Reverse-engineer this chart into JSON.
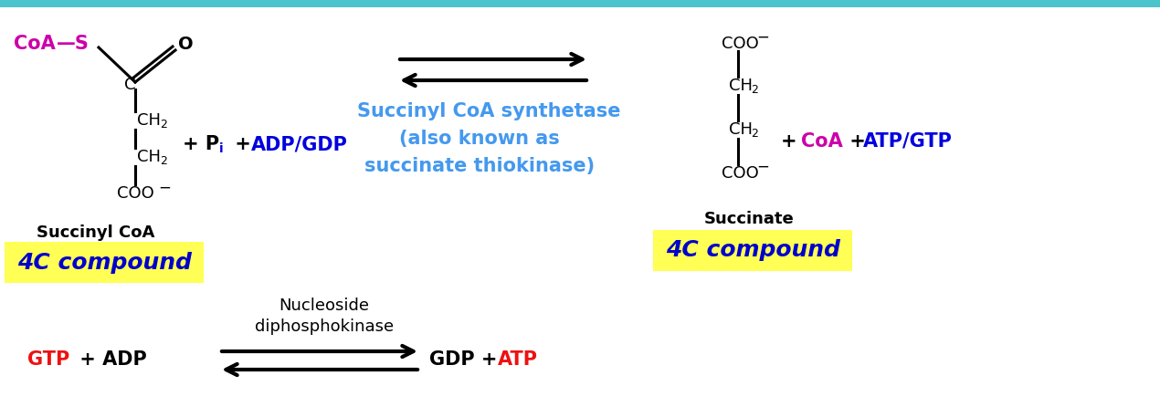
{
  "bg_color": "#ffffff",
  "top_bar_color": "#4cc4cc",
  "fig_width": 12.7,
  "fig_height": 4.46,
  "dpi": 100,
  "colors": {
    "magenta": "#cc00aa",
    "blue": "#0000dd",
    "cyan_blue": "#4499ee",
    "black": "#000000",
    "red": "#ee1111",
    "yellow_bg": "#ffff55",
    "dark_blue": "#0000cc"
  },
  "succinyl_coa_label": "Succinyl CoA",
  "succinate_label": "Succinate",
  "4c_compound": "4C compound",
  "enzyme_line1": "Succinyl CoA synthetase",
  "enzyme_line2": "(also known as",
  "enzyme_line3": "succinate thiokinase)",
  "nucleoside": "Nucleoside",
  "diphosphokinase": "diphosphokinase"
}
